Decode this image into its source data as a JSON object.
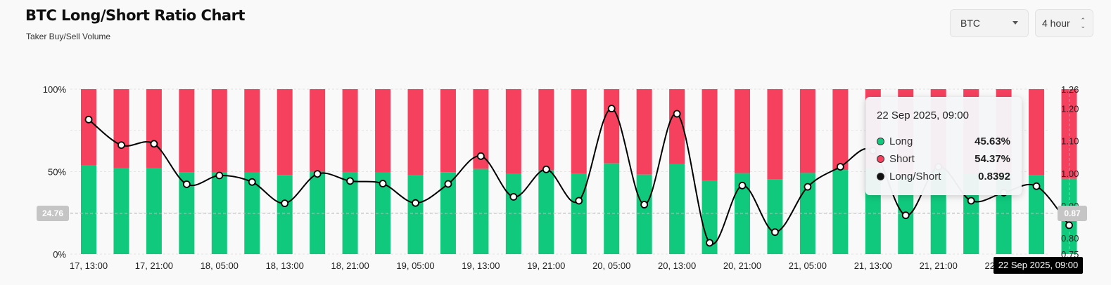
{
  "header": {
    "title": "BTC Long/Short Ratio Chart",
    "subtitle": "Taker Buy/Sell Volume",
    "symbol_select": "BTC",
    "interval_select": "4 hour"
  },
  "tooltip": {
    "title": "22 Sep 2025, 09:00",
    "rows": [
      {
        "label": "Long",
        "value": "45.63%",
        "color": "#10c97d"
      },
      {
        "label": "Short",
        "value": "54.37%",
        "color": "#f5405e"
      },
      {
        "label": "Long/Short",
        "value": "0.8392",
        "color": "#111111"
      }
    ]
  },
  "crosshair": {
    "left_label": "24.76",
    "right_label": "0.87",
    "x_label": "22 Sep 2025, 09:00"
  },
  "colors": {
    "long": "#10c97d",
    "short": "#f5405e",
    "line": "#000000"
  },
  "chart_data": {
    "type": "bar",
    "stacked": true,
    "grid": true,
    "x_tick_labels": [
      "17, 13:00",
      "17, 21:00",
      "18, 05:00",
      "18, 13:00",
      "18, 21:00",
      "19, 05:00",
      "19, 13:00",
      "19, 21:00",
      "20, 05:00",
      "20, 13:00",
      "20, 21:00",
      "21, 05:00",
      "21, 13:00",
      "21, 21:00",
      "22, 05:00"
    ],
    "left_axis": {
      "ticks": [
        "0%",
        "50%",
        "100%"
      ],
      "range": [
        0,
        100
      ]
    },
    "right_axis": {
      "ticks": [
        "0.75",
        "0.80",
        "0.90",
        "1.00",
        "1.10",
        "1.20",
        "1.26"
      ],
      "range": [
        0.75,
        1.26
      ]
    },
    "series": [
      {
        "name": "Long",
        "axis": "left",
        "values": [
          53.8,
          52.1,
          52.1,
          49.5,
          49.8,
          49.4,
          48.0,
          50.0,
          49.8,
          49.4,
          47.9,
          49.7,
          51.6,
          48.7,
          50.8,
          48.6,
          55.0,
          48.2,
          54.5,
          44.5,
          49.1,
          45.5,
          49.2,
          51.0,
          52.0,
          47.0,
          51.0,
          48.5,
          49.0,
          47.8,
          45.63
        ]
      },
      {
        "name": "Short",
        "axis": "left",
        "values": [
          46.2,
          47.9,
          47.9,
          50.5,
          50.2,
          50.6,
          52.0,
          50.0,
          50.2,
          50.6,
          52.1,
          50.3,
          48.4,
          51.3,
          49.2,
          51.4,
          45.0,
          51.8,
          45.5,
          55.5,
          50.9,
          54.5,
          50.8,
          49.0,
          48.0,
          53.0,
          49.0,
          51.5,
          51.0,
          52.2,
          54.37
        ]
      },
      {
        "name": "Long/Short",
        "axis": "right",
        "values": [
          1.166,
          1.087,
          1.091,
          0.966,
          0.993,
          0.973,
          0.907,
          0.998,
          0.976,
          0.968,
          0.908,
          0.967,
          1.053,
          0.927,
          1.012,
          0.915,
          1.2,
          0.903,
          1.184,
          0.785,
          0.962,
          0.818,
          0.958,
          1.02,
          1.07,
          0.87,
          1.02,
          0.915,
          0.94,
          0.96,
          0.8392
        ]
      }
    ]
  }
}
